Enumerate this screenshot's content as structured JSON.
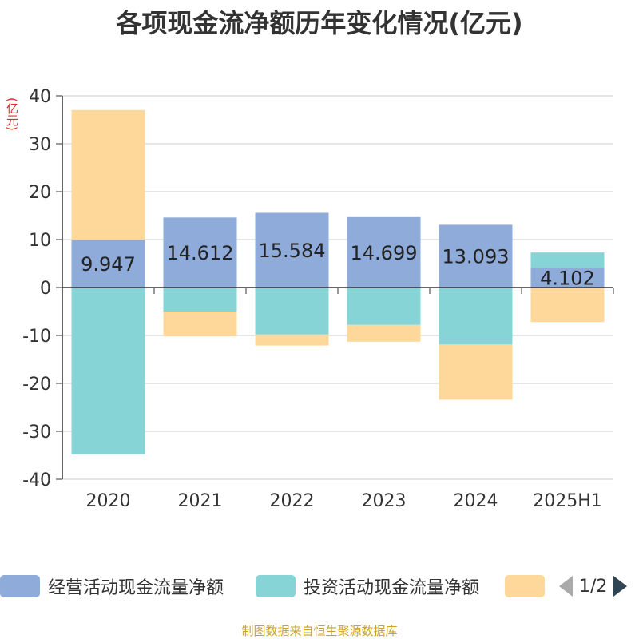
{
  "title": "各项现金流净额历年变化情况(亿元)",
  "unit_label": "(亿元)",
  "source": "制图数据来自恒生聚源数据库",
  "legend": {
    "items": [
      {
        "label": "经营活动现金流量净额",
        "color": "#8eabd9"
      },
      {
        "label": "投资活动现金流量净额",
        "color": "#87d4d7"
      },
      {
        "label": "",
        "color": "#fdd89a"
      }
    ],
    "page": "1/2"
  },
  "chart_data": {
    "type": "bar",
    "stacked": true,
    "categories": [
      "2020",
      "2021",
      "2022",
      "2023",
      "2024",
      "2025H1"
    ],
    "ylim": [
      -40,
      40
    ],
    "yticks": [
      40,
      30,
      20,
      10,
      0,
      -10,
      -20,
      -30,
      -40
    ],
    "grid": true,
    "legend_position": "bottom",
    "series": [
      {
        "name": "经营活动现金流量净额",
        "color": "#8eabd9",
        "values": [
          9.947,
          14.612,
          15.584,
          14.699,
          13.093,
          4.102
        ],
        "labels": [
          "9.947",
          "14.612",
          "15.584",
          "14.699",
          "13.093",
          "4.102"
        ]
      },
      {
        "name": "投资活动现金流量净额",
        "color": "#87d4d7",
        "values": [
          -34.8,
          -5.0,
          -9.8,
          -7.8,
          -11.9,
          3.2
        ]
      },
      {
        "color": "#fdd89a",
        "values": [
          27.1,
          -5.2,
          -2.3,
          -3.5,
          -11.5,
          -7.2
        ]
      }
    ]
  }
}
